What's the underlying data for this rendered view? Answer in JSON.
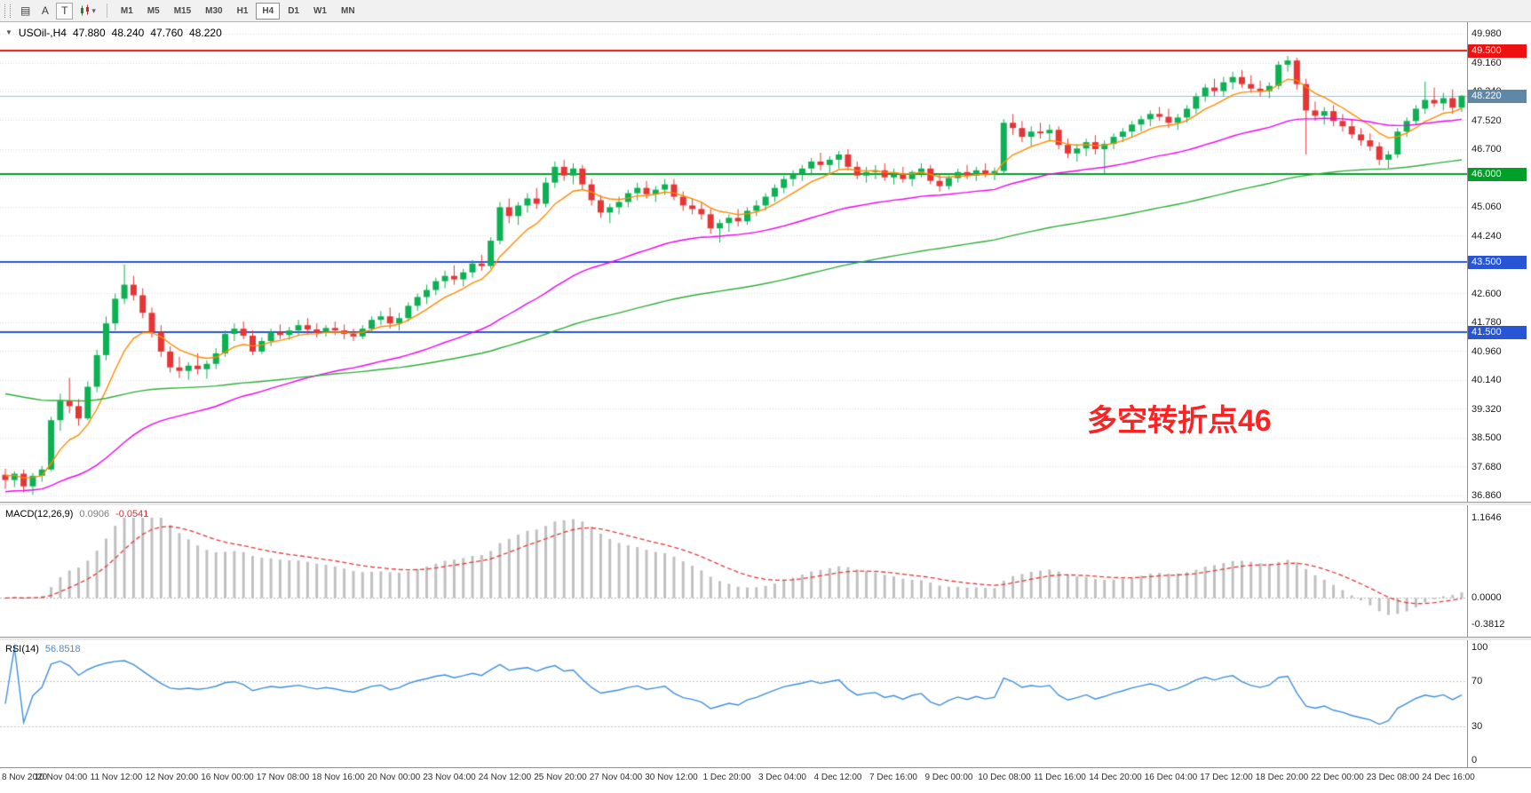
{
  "toolbar": {
    "grid_button": "▤",
    "cursor_button": "A",
    "text_button": "T",
    "chart_type_caret": "▾",
    "timeframes": [
      "M1",
      "M5",
      "M15",
      "M30",
      "H1",
      "H4",
      "D1",
      "W1",
      "MN"
    ],
    "active_timeframe": "H4"
  },
  "chart": {
    "quote": {
      "caret": "▼",
      "symbol": "USOil-,H4",
      "open": "47.880",
      "high": "48.240",
      "low": "47.760",
      "close": "48.220"
    },
    "price_axis": [
      "49.980",
      "49.160",
      "48.340",
      "47.520",
      "46.700",
      "45.880",
      "45.060",
      "44.240",
      "43.420",
      "42.600",
      "41.780",
      "40.960",
      "40.140",
      "39.320",
      "38.500",
      "37.680",
      "36.860"
    ],
    "levels": [
      {
        "value": 49.5,
        "label": "49.500",
        "color": "#ee1111"
      },
      {
        "value": 46.0,
        "label": "46.000",
        "color": "#00a028"
      },
      {
        "value": 43.5,
        "label": "43.500",
        "color": "#2855d4"
      },
      {
        "value": 41.5,
        "label": "41.500",
        "color": "#2855d4"
      }
    ],
    "current_price": {
      "value": 48.22,
      "label": "48.220"
    },
    "annotation": {
      "text": "多空转折点46",
      "color": "#fb2323"
    }
  },
  "indicators": {
    "macd": {
      "label": "MACD(12,26,9)",
      "value_main": "0.0906",
      "value_signal": "-0.0541",
      "range": [
        -0.3812,
        1.1646
      ],
      "axis": [
        "1.1646",
        "0.0000",
        "-0.3812"
      ],
      "axis_values": [
        1.1646,
        0,
        -0.3812
      ]
    },
    "rsi": {
      "label": "RSI(14)",
      "value": "56.8518",
      "period": 14,
      "levels": [
        70,
        30
      ],
      "axis": [
        "100",
        "70",
        "30",
        "0"
      ],
      "axis_values": [
        100,
        70,
        30,
        0
      ]
    }
  },
  "chart_data": {
    "type": "candlestick",
    "title": "USOil-,H4",
    "ylim": [
      36.86,
      49.98
    ],
    "x_labels": [
      "8 Nov 2020",
      "10 Nov 04:00",
      "11 Nov 12:00",
      "12 Nov 20:00",
      "16 Nov 00:00",
      "17 Nov 08:00",
      "18 Nov 16:00",
      "20 Nov 00:00",
      "23 Nov 04:00",
      "24 Nov 12:00",
      "25 Nov 20:00",
      "27 Nov 04:00",
      "30 Nov 12:00",
      "1 Dec 20:00",
      "3 Dec 04:00",
      "4 Dec 12:00",
      "7 Dec 16:00",
      "9 Dec 00:00",
      "10 Dec 08:00",
      "11 Dec 16:00",
      "14 Dec 20:00",
      "16 Dec 04:00",
      "17 Dec 12:00",
      "18 Dec 20:00",
      "22 Dec 00:00",
      "23 Dec 08:00",
      "24 Dec 16:00"
    ],
    "moving_averages": [
      {
        "period": 8,
        "color": "#ff8a00",
        "seed": 37.45
      },
      {
        "period": 40,
        "color": "#f000f0",
        "seed": 36.95
      },
      {
        "period": 100,
        "color": "#2fae39",
        "seed": 39.8
      }
    ],
    "candles": [
      [
        37.45,
        37.62,
        37.05,
        37.3
      ],
      [
        37.3,
        37.55,
        37.1,
        37.48
      ],
      [
        37.48,
        37.6,
        36.95,
        37.12
      ],
      [
        37.12,
        37.5,
        36.88,
        37.42
      ],
      [
        37.42,
        37.7,
        37.25,
        37.6
      ],
      [
        37.6,
        39.1,
        37.55,
        39.0
      ],
      [
        39.0,
        39.75,
        38.7,
        39.55
      ],
      [
        39.55,
        40.2,
        39.2,
        39.4
      ],
      [
        39.4,
        39.6,
        38.85,
        39.05
      ],
      [
        39.05,
        40.1,
        39.0,
        39.95
      ],
      [
        39.95,
        41.0,
        39.8,
        40.85
      ],
      [
        40.85,
        41.95,
        40.7,
        41.75
      ],
      [
        41.75,
        42.6,
        41.55,
        42.45
      ],
      [
        42.45,
        43.42,
        42.3,
        42.85
      ],
      [
        42.85,
        43.1,
        42.4,
        42.55
      ],
      [
        42.55,
        42.75,
        41.9,
        42.05
      ],
      [
        42.05,
        42.2,
        41.35,
        41.5
      ],
      [
        41.5,
        41.7,
        40.8,
        40.95
      ],
      [
        40.95,
        41.1,
        40.35,
        40.5
      ],
      [
        40.5,
        40.8,
        40.2,
        40.4
      ],
      [
        40.4,
        40.65,
        40.15,
        40.55
      ],
      [
        40.55,
        40.9,
        40.3,
        40.45
      ],
      [
        40.45,
        40.7,
        40.18,
        40.6
      ],
      [
        40.6,
        41.05,
        40.45,
        40.9
      ],
      [
        40.9,
        41.55,
        40.8,
        41.45
      ],
      [
        41.45,
        41.75,
        41.25,
        41.6
      ],
      [
        41.6,
        41.8,
        41.3,
        41.4
      ],
      [
        41.4,
        41.55,
        40.85,
        40.95
      ],
      [
        40.95,
        41.35,
        40.88,
        41.25
      ],
      [
        41.25,
        41.6,
        41.1,
        41.5
      ],
      [
        41.5,
        41.72,
        41.3,
        41.42
      ],
      [
        41.42,
        41.65,
        41.28,
        41.55
      ],
      [
        41.55,
        41.85,
        41.4,
        41.7
      ],
      [
        41.7,
        41.9,
        41.45,
        41.58
      ],
      [
        41.58,
        41.75,
        41.35,
        41.48
      ],
      [
        41.48,
        41.7,
        41.38,
        41.62
      ],
      [
        41.62,
        41.8,
        41.42,
        41.55
      ],
      [
        41.55,
        41.72,
        41.3,
        41.45
      ],
      [
        41.45,
        41.6,
        41.25,
        41.38
      ],
      [
        41.38,
        41.7,
        41.3,
        41.6
      ],
      [
        41.6,
        41.95,
        41.5,
        41.85
      ],
      [
        41.85,
        42.1,
        41.7,
        41.95
      ],
      [
        41.95,
        42.2,
        41.6,
        41.75
      ],
      [
        41.75,
        42.05,
        41.55,
        41.9
      ],
      [
        41.9,
        42.35,
        41.8,
        42.25
      ],
      [
        42.25,
        42.6,
        42.1,
        42.5
      ],
      [
        42.5,
        42.85,
        42.3,
        42.7
      ],
      [
        42.7,
        43.05,
        42.55,
        42.95
      ],
      [
        42.95,
        43.25,
        42.75,
        43.1
      ],
      [
        43.1,
        43.4,
        42.85,
        43.0
      ],
      [
        43.0,
        43.3,
        42.8,
        43.2
      ],
      [
        43.2,
        43.55,
        43.05,
        43.45
      ],
      [
        43.45,
        43.7,
        43.25,
        43.38
      ],
      [
        43.38,
        44.2,
        43.3,
        44.1
      ],
      [
        44.1,
        45.2,
        44.0,
        45.05
      ],
      [
        45.05,
        45.3,
        44.6,
        44.8
      ],
      [
        44.8,
        45.2,
        44.55,
        45.1
      ],
      [
        45.1,
        45.45,
        44.9,
        45.3
      ],
      [
        45.3,
        45.6,
        45.0,
        45.15
      ],
      [
        45.15,
        45.9,
        45.05,
        45.75
      ],
      [
        45.75,
        46.35,
        45.6,
        46.2
      ],
      [
        46.2,
        46.4,
        45.8,
        45.95
      ],
      [
        45.95,
        46.3,
        45.7,
        46.15
      ],
      [
        46.15,
        46.25,
        45.55,
        45.7
      ],
      [
        45.7,
        45.85,
        45.1,
        45.25
      ],
      [
        45.25,
        45.4,
        44.75,
        44.9
      ],
      [
        44.9,
        45.15,
        44.6,
        45.05
      ],
      [
        45.05,
        45.35,
        44.85,
        45.2
      ],
      [
        45.2,
        45.55,
        45.05,
        45.45
      ],
      [
        45.45,
        45.75,
        45.25,
        45.6
      ],
      [
        45.6,
        45.8,
        45.3,
        45.42
      ],
      [
        45.42,
        45.65,
        45.2,
        45.55
      ],
      [
        45.55,
        45.85,
        45.4,
        45.7
      ],
      [
        45.7,
        45.85,
        45.25,
        45.35
      ],
      [
        45.35,
        45.5,
        44.95,
        45.1
      ],
      [
        45.1,
        45.3,
        44.85,
        45.0
      ],
      [
        45.0,
        45.2,
        44.7,
        44.85
      ],
      [
        44.85,
        45.0,
        44.3,
        44.45
      ],
      [
        44.45,
        44.7,
        44.05,
        44.6
      ],
      [
        44.6,
        44.85,
        44.35,
        44.75
      ],
      [
        44.75,
        45.0,
        44.5,
        44.65
      ],
      [
        44.65,
        45.05,
        44.55,
        44.95
      ],
      [
        44.95,
        45.25,
        44.8,
        45.1
      ],
      [
        45.1,
        45.45,
        44.95,
        45.35
      ],
      [
        45.35,
        45.7,
        45.2,
        45.6
      ],
      [
        45.6,
        45.95,
        45.45,
        45.85
      ],
      [
        45.85,
        46.1,
        45.65,
        46.0
      ],
      [
        46.0,
        46.25,
        45.8,
        46.15
      ],
      [
        46.15,
        46.45,
        45.95,
        46.35
      ],
      [
        46.35,
        46.6,
        46.1,
        46.25
      ],
      [
        46.25,
        46.5,
        46.0,
        46.4
      ],
      [
        46.4,
        46.65,
        46.15,
        46.55
      ],
      [
        46.55,
        46.7,
        46.1,
        46.2
      ],
      [
        46.2,
        46.35,
        45.85,
        45.95
      ],
      [
        45.95,
        46.2,
        45.75,
        46.05
      ],
      [
        46.05,
        46.25,
        45.85,
        46.1
      ],
      [
        46.1,
        46.3,
        45.8,
        45.9
      ],
      [
        45.9,
        46.15,
        45.7,
        46.0
      ],
      [
        46.0,
        46.2,
        45.75,
        45.85
      ],
      [
        45.85,
        46.1,
        45.65,
        46.05
      ],
      [
        46.05,
        46.3,
        45.9,
        46.15
      ],
      [
        46.15,
        46.25,
        45.7,
        45.8
      ],
      [
        45.8,
        46.0,
        45.5,
        45.65
      ],
      [
        45.65,
        45.95,
        45.55,
        45.88
      ],
      [
        45.88,
        46.15,
        45.75,
        46.05
      ],
      [
        46.05,
        46.25,
        45.85,
        45.95
      ],
      [
        45.95,
        46.2,
        45.8,
        46.1
      ],
      [
        46.1,
        46.3,
        45.9,
        46.0
      ],
      [
        46.0,
        46.18,
        45.82,
        46.08
      ],
      [
        46.08,
        47.55,
        46.0,
        47.45
      ],
      [
        47.45,
        47.7,
        47.1,
        47.3
      ],
      [
        47.3,
        47.5,
        46.9,
        47.05
      ],
      [
        47.05,
        47.35,
        46.8,
        47.2
      ],
      [
        47.2,
        47.45,
        47.0,
        47.15
      ],
      [
        47.15,
        47.4,
        46.95,
        47.25
      ],
      [
        47.25,
        47.35,
        46.7,
        46.82
      ],
      [
        46.82,
        47.0,
        46.45,
        46.58
      ],
      [
        46.58,
        46.85,
        46.35,
        46.72
      ],
      [
        46.72,
        47.0,
        46.5,
        46.9
      ],
      [
        46.9,
        47.1,
        46.55,
        46.7
      ],
      [
        46.7,
        46.95,
        46.0,
        46.85
      ],
      [
        46.85,
        47.15,
        46.7,
        47.05
      ],
      [
        47.05,
        47.3,
        46.9,
        47.2
      ],
      [
        47.2,
        47.5,
        47.05,
        47.4
      ],
      [
        47.4,
        47.65,
        47.2,
        47.55
      ],
      [
        47.55,
        47.8,
        47.35,
        47.7
      ],
      [
        47.7,
        47.9,
        47.5,
        47.62
      ],
      [
        47.62,
        47.85,
        47.3,
        47.45
      ],
      [
        47.45,
        47.7,
        47.25,
        47.6
      ],
      [
        47.6,
        47.95,
        47.45,
        47.85
      ],
      [
        47.85,
        48.3,
        47.7,
        48.2
      ],
      [
        48.2,
        48.55,
        48.05,
        48.45
      ],
      [
        48.45,
        48.7,
        48.2,
        48.35
      ],
      [
        48.35,
        48.75,
        48.2,
        48.6
      ],
      [
        48.6,
        48.9,
        48.4,
        48.75
      ],
      [
        48.75,
        48.95,
        48.45,
        48.55
      ],
      [
        48.55,
        48.8,
        48.3,
        48.42
      ],
      [
        48.42,
        48.65,
        48.2,
        48.35
      ],
      [
        48.35,
        48.6,
        48.15,
        48.5
      ],
      [
        48.5,
        49.2,
        48.4,
        49.1
      ],
      [
        49.1,
        49.35,
        48.9,
        49.22
      ],
      [
        49.22,
        49.3,
        48.4,
        48.55
      ],
      [
        48.55,
        48.7,
        46.55,
        47.8
      ],
      [
        47.8,
        48.05,
        47.5,
        47.65
      ],
      [
        47.65,
        47.9,
        47.4,
        47.78
      ],
      [
        47.78,
        47.95,
        47.35,
        47.5
      ],
      [
        47.5,
        47.7,
        47.2,
        47.35
      ],
      [
        47.35,
        47.55,
        47.0,
        47.12
      ],
      [
        47.12,
        47.3,
        46.8,
        46.95
      ],
      [
        46.95,
        47.15,
        46.65,
        46.78
      ],
      [
        46.78,
        46.9,
        46.25,
        46.4
      ],
      [
        46.4,
        46.65,
        46.15,
        46.55
      ],
      [
        46.55,
        47.3,
        46.45,
        47.2
      ],
      [
        47.2,
        47.6,
        47.05,
        47.5
      ],
      [
        47.5,
        47.95,
        47.4,
        47.85
      ],
      [
        47.85,
        48.62,
        47.7,
        48.1
      ],
      [
        48.1,
        48.45,
        47.9,
        48.0
      ],
      [
        48.0,
        48.3,
        47.8,
        48.15
      ],
      [
        48.15,
        48.4,
        47.7,
        47.88
      ],
      [
        47.88,
        48.24,
        47.76,
        48.22
      ]
    ]
  },
  "colors": {
    "up": "#0db053",
    "down": "#e53535",
    "grid": "#d9d9d9",
    "price_line": "#a5bccd",
    "price_badge": "#5f87a8",
    "macd_hist": "#c0c0c0",
    "macd_signal": "#e53535",
    "rsi_line": "#3f8edc"
  }
}
